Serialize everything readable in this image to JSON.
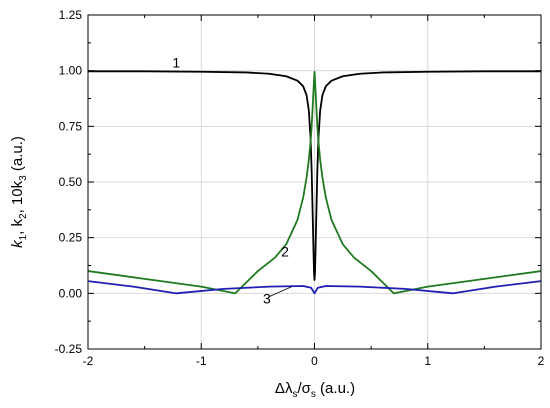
{
  "chart_data": {
    "type": "line",
    "xlim": [
      -2,
      2
    ],
    "ylim": [
      -0.25,
      1.25
    ],
    "x_ticks": [
      "-2",
      "-1",
      "0",
      "1",
      "2"
    ],
    "y_ticks": [
      "-0.25",
      "0.00",
      "0.25",
      "0.50",
      "0.75",
      "1.00",
      "1.25"
    ],
    "x_tick_values": [
      -2,
      -1,
      0,
      1,
      2
    ],
    "y_tick_values": [
      -0.25,
      0,
      0.25,
      0.5,
      0.75,
      1.0,
      1.25
    ],
    "grid": true,
    "xlabel": {
      "main": "Δλ",
      "sub1": "s",
      "mid": "/σ",
      "sub2": "s",
      "unit": " (a.u.)"
    },
    "ylabel": {
      "a": "k",
      "a_sub": "1",
      "b": ", k",
      "b_sub": "2",
      "c": ", 10k",
      "c_sub": "3",
      "unit": " (a.u.)"
    },
    "series": [
      {
        "label": "1",
        "color": "#000000",
        "x": [
          -2,
          -1.5,
          -1,
          -0.6,
          -0.4,
          -0.25,
          -0.15,
          -0.1,
          -0.07,
          -0.05,
          -0.035,
          -0.025,
          -0.015,
          -0.008,
          -0.004,
          0,
          0.004,
          0.008,
          0.015,
          0.025,
          0.035,
          0.05,
          0.07,
          0.1,
          0.15,
          0.25,
          0.4,
          0.6,
          1,
          1.5,
          2
        ],
        "y": [
          0.997,
          0.997,
          0.995,
          0.992,
          0.986,
          0.975,
          0.955,
          0.93,
          0.89,
          0.82,
          0.7,
          0.55,
          0.33,
          0.17,
          0.09,
          0.06,
          0.09,
          0.17,
          0.33,
          0.55,
          0.7,
          0.82,
          0.89,
          0.93,
          0.955,
          0.975,
          0.986,
          0.992,
          0.995,
          0.997,
          0.997
        ]
      },
      {
        "label": "2",
        "color": "#1f7a1f",
        "x": [
          -2,
          -1.5,
          -1,
          -0.7,
          -0.5,
          -0.35,
          -0.25,
          -0.15,
          -0.1,
          -0.07,
          -0.05,
          -0.035,
          -0.025,
          -0.015,
          -0.007,
          0,
          0.007,
          0.015,
          0.025,
          0.035,
          0.05,
          0.07,
          0.1,
          0.15,
          0.25,
          0.35,
          0.5,
          0.7,
          1,
          1.5,
          2
        ],
        "y": [
          0.1,
          0.065,
          0.03,
          0.0,
          0.1,
          0.16,
          0.22,
          0.33,
          0.43,
          0.52,
          0.6,
          0.68,
          0.75,
          0.85,
          0.93,
          0.995,
          0.93,
          0.85,
          0.75,
          0.68,
          0.6,
          0.52,
          0.43,
          0.33,
          0.22,
          0.16,
          0.1,
          0.0,
          0.03,
          0.065,
          0.1
        ]
      },
      {
        "label": "3",
        "color": "#1f1fb4",
        "x": [
          -2,
          -1.6,
          -1.22,
          -0.8,
          -0.4,
          -0.1,
          -0.03,
          0,
          0.03,
          0.1,
          0.4,
          0.8,
          1.22,
          1.6,
          2
        ],
        "y": [
          0.055,
          0.03,
          0.0,
          0.02,
          0.03,
          0.033,
          0.025,
          0.0,
          0.025,
          0.033,
          0.03,
          0.02,
          0.0,
          0.03,
          0.055
        ]
      }
    ],
    "annotations": [
      {
        "text": "1",
        "x": -1.22,
        "y": 1.015
      },
      {
        "text": "2",
        "x": -0.26,
        "y": 0.165
      },
      {
        "text": "3",
        "x": -0.42,
        "y": -0.045
      }
    ]
  }
}
